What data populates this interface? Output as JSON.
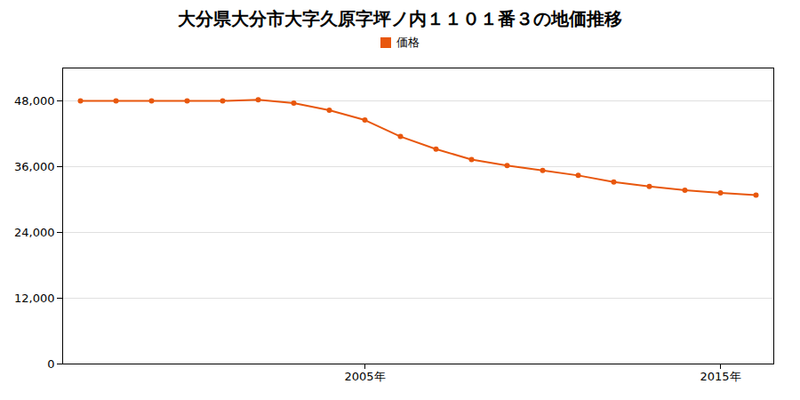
{
  "chart_data": {
    "type": "line",
    "title": "大分県大分市大字久原字坪ノ内１１０１番３の地価推移",
    "x": [
      1997,
      1998,
      1999,
      2000,
      2001,
      2002,
      2003,
      2004,
      2005,
      2006,
      2007,
      2008,
      2009,
      2010,
      2011,
      2012,
      2013,
      2014,
      2015,
      2016
    ],
    "series": [
      {
        "name": "価格",
        "color": "#e8570d",
        "marker": "circle",
        "values": [
          48000,
          48000,
          48000,
          48000,
          48000,
          48200,
          47600,
          46300,
          44500,
          41500,
          39200,
          37300,
          36200,
          35300,
          34400,
          33200,
          32400,
          31700,
          31200,
          30800
        ]
      }
    ],
    "xlim": [
      1996.5,
      2016.5
    ],
    "xticks": [
      {
        "value": 2005,
        "label": "2005年"
      },
      {
        "value": 2015,
        "label": "2015年"
      }
    ],
    "ylim": [
      0,
      54000
    ],
    "yticks": [
      0,
      {
        "value": 12000,
        "label": "12,000"
      },
      {
        "value": 24000,
        "label": "24,000"
      },
      {
        "value": 36000,
        "label": "36,000"
      },
      {
        "value": 48000,
        "label": "48,000"
      }
    ],
    "grid": "y",
    "legend": "top"
  }
}
